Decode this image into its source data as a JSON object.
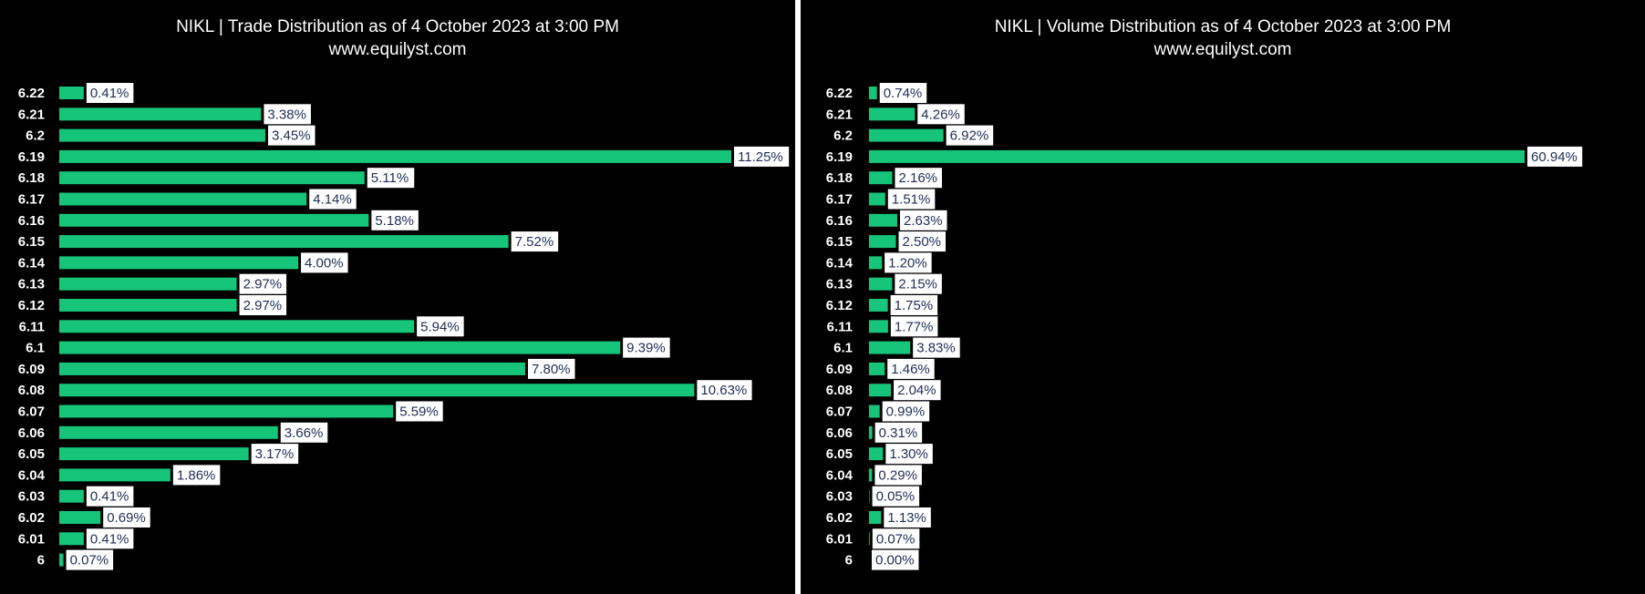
{
  "chart_data": [
    {
      "type": "bar",
      "orientation": "horizontal",
      "title": "NIKL | Trade Distribution as of 4 October 2023 at 3:00 PM",
      "subtitle": "www.equilyst.com",
      "categories": [
        "6.22",
        "6.21",
        "6.2",
        "6.19",
        "6.18",
        "6.17",
        "6.16",
        "6.15",
        "6.14",
        "6.13",
        "6.12",
        "6.11",
        "6.1",
        "6.09",
        "6.08",
        "6.07",
        "6.06",
        "6.05",
        "6.04",
        "6.03",
        "6.02",
        "6.01",
        "6"
      ],
      "values": [
        0.41,
        3.38,
        3.45,
        11.25,
        5.11,
        4.14,
        5.18,
        7.52,
        4.0,
        2.97,
        2.97,
        5.94,
        9.39,
        7.8,
        10.63,
        5.59,
        3.66,
        3.17,
        1.86,
        0.41,
        0.69,
        0.41,
        0.07
      ],
      "labels": [
        "0.41%",
        "3.38%",
        "3.45%",
        "11.25%",
        "5.11%",
        "4.14%",
        "5.18%",
        "7.52%",
        "4.00%",
        "2.97%",
        "2.97%",
        "5.94%",
        "9.39%",
        "7.80%",
        "10.63%",
        "5.59%",
        "3.66%",
        "3.17%",
        "1.86%",
        "0.41%",
        "0.69%",
        "0.41%",
        "0.07%"
      ],
      "xlim": [
        0,
        11.25
      ],
      "grid": false,
      "bar_color": "#16c47a",
      "background": "#000000"
    },
    {
      "type": "bar",
      "orientation": "horizontal",
      "title": "NIKL | Volume Distribution as of 4 October 2023 at 3:00 PM",
      "subtitle": "www.equilyst.com",
      "categories": [
        "6.22",
        "6.21",
        "6.2",
        "6.19",
        "6.18",
        "6.17",
        "6.16",
        "6.15",
        "6.14",
        "6.13",
        "6.12",
        "6.11",
        "6.1",
        "6.09",
        "6.08",
        "6.07",
        "6.06",
        "6.05",
        "6.04",
        "6.03",
        "6.02",
        "6.01",
        "6"
      ],
      "values": [
        0.74,
        4.26,
        6.92,
        60.94,
        2.16,
        1.51,
        2.63,
        2.5,
        1.2,
        2.15,
        1.75,
        1.77,
        3.83,
        1.46,
        2.04,
        0.99,
        0.31,
        1.3,
        0.29,
        0.05,
        1.13,
        0.07,
        0.0
      ],
      "labels": [
        "0.74%",
        "4.26%",
        "6.92%",
        "60.94%",
        "2.16%",
        "1.51%",
        "2.63%",
        "2.50%",
        "1.20%",
        "2.15%",
        "1.75%",
        "1.77%",
        "3.83%",
        "1.46%",
        "2.04%",
        "0.99%",
        "0.31%",
        "1.30%",
        "0.29%",
        "0.05%",
        "1.13%",
        "0.07%",
        "0.00%"
      ],
      "xlim": [
        0,
        60.94
      ],
      "grid": false,
      "bar_color": "#16c47a",
      "background": "#000000"
    }
  ]
}
